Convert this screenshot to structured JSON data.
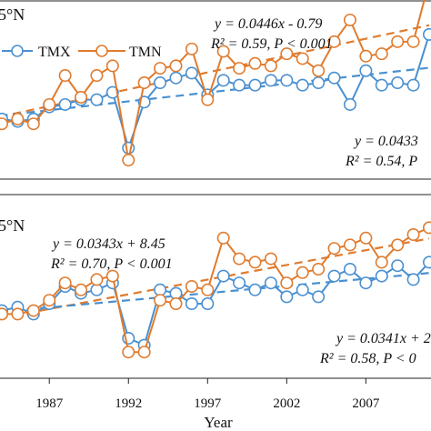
{
  "xlabel": "Year",
  "x_ticks": [
    "1987",
    "1992",
    "1997",
    "2002",
    "2007"
  ],
  "legend": {
    "tmx": "TMX",
    "tmn": "TMN",
    "placement": "top-left"
  },
  "colors": {
    "tmx": "#4a90d0",
    "tmn": "#e07b2e"
  },
  "chart_data": [
    {
      "type": "line",
      "panel_label": "5°N",
      "x": [
        1983,
        1984,
        1985,
        1986,
        1987,
        1988,
        1989,
        1990,
        1991,
        1992,
        1993,
        1994,
        1995,
        1996,
        1997,
        1998,
        1999,
        2000,
        2001,
        2002,
        2003,
        2004,
        2005,
        2006,
        2007,
        2008,
        2009,
        2010,
        2011
      ],
      "xlim": [
        1984,
        2011
      ],
      "series": [
        {
          "name": "TMX",
          "values": [
            -0.1,
            -0.05,
            -0.1,
            -0.05,
            0.2,
            0.25,
            0.35,
            0.35,
            0.5,
            -0.65,
            0.3,
            0.7,
            0.8,
            0.9,
            0.45,
            0.75,
            0.65,
            0.65,
            0.75,
            0.75,
            0.65,
            0.7,
            0.8,
            0.25,
            0.95,
            0.65,
            0.7,
            0.65,
            1.7
          ]
        },
        {
          "name": "TMN",
          "values": [
            -0.1,
            -0.15,
            -0.05,
            -0.15,
            0.25,
            0.85,
            0.4,
            0.85,
            1.05,
            -0.9,
            0.7,
            1.0,
            1.05,
            1.4,
            0.35,
            1.35,
            1.0,
            1.1,
            1.05,
            1.3,
            1.2,
            0.95,
            1.55,
            2.0,
            1.25,
            1.3,
            1.55,
            1.55,
            2.8
          ]
        }
      ],
      "trend_lines": [
        {
          "series": "TMN",
          "slope": 0.0446,
          "intercept": -0.79,
          "r2": 0.59,
          "eq_text": "y = 0.0446x - 0.79",
          "stat_text": "R² = 0.59, P < 0.001"
        },
        {
          "series": "TMX",
          "slope": 0.0433,
          "intercept": -1.27,
          "r2": 0.54,
          "eq_text": "y = 0.0433",
          "stat_text": "R² = 0.54, P"
        }
      ],
      "ylim": [
        -1.2,
        2.3
      ]
    },
    {
      "type": "line",
      "panel_label": "5°N",
      "x": [
        1983,
        1984,
        1985,
        1986,
        1987,
        1988,
        1989,
        1990,
        1991,
        1992,
        1993,
        1994,
        1995,
        1996,
        1997,
        1998,
        1999,
        2000,
        2001,
        2002,
        2003,
        2004,
        2005,
        2006,
        2007,
        2008,
        2009,
        2010,
        2011
      ],
      "xlim": [
        1984,
        2011
      ],
      "series": [
        {
          "name": "TMX",
          "values": [
            0.1,
            0.1,
            0.15,
            0.05,
            0.2,
            0.45,
            0.35,
            0.4,
            0.5,
            -0.3,
            -0.4,
            0.4,
            0.35,
            0.2,
            0.2,
            0.6,
            0.5,
            0.4,
            0.5,
            0.3,
            0.4,
            0.3,
            0.6,
            0.7,
            0.5,
            0.6,
            0.75,
            0.55,
            0.8
          ]
        },
        {
          "name": "TMN",
          "values": [
            0.05,
            0.05,
            0.05,
            0.1,
            0.25,
            0.5,
            0.4,
            0.55,
            0.6,
            -0.5,
            -0.5,
            0.25,
            0.2,
            0.45,
            0.4,
            1.15,
            0.85,
            0.8,
            0.85,
            0.5,
            0.65,
            0.7,
            1.0,
            1.05,
            1.15,
            0.8,
            1.05,
            1.2,
            1.3
          ]
        }
      ],
      "trend_lines": [
        {
          "series": "TMN",
          "slope": 0.0343,
          "intercept": 8.45,
          "r2": 0.7,
          "eq_text": "y = 0.0343x + 8.45",
          "stat_text": "R² = 0.70, P < 0.001"
        },
        {
          "series": "TMX",
          "slope": 0.0341,
          "intercept": 2.0,
          "r2": 0.58,
          "eq_text": "y = 0.0341x + 2",
          "stat_text": "R² = 0.58, P < 0"
        }
      ],
      "ylim": [
        -0.8,
        1.7
      ]
    }
  ]
}
